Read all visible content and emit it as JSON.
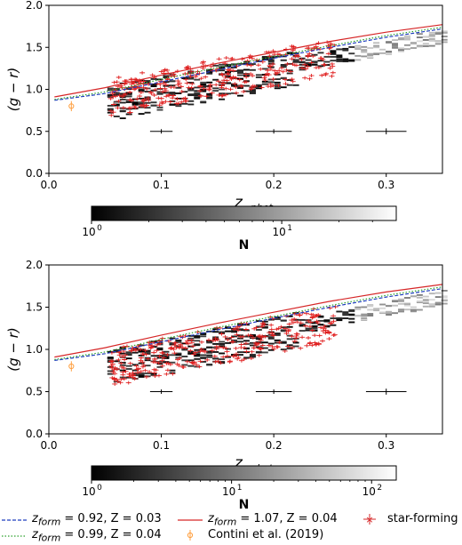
{
  "chart_data": [
    {
      "type": "heatmap",
      "panel": "top",
      "xlabel": "z_phot",
      "ylabel": "(g − r)",
      "xlim": [
        0.0,
        0.35
      ],
      "ylim": [
        0.0,
        2.0
      ],
      "xticks": [
        "0.0",
        "0.1",
        "0.2",
        "0.3"
      ],
      "yticks": [
        "0.0",
        "0.5",
        "1.0",
        "1.5",
        "2.0"
      ],
      "grid": false,
      "colorbar": {
        "label": "N",
        "scale": "log",
        "range": [
          1,
          40
        ],
        "ticks": [
          "10^0",
          "10^1"
        ]
      },
      "models": [
        {
          "name": "z_form = 0.92, Z = 0.03",
          "color": "#1f3fbf",
          "style": "dashed",
          "x": [
            0.005,
            0.05,
            0.1,
            0.15,
            0.2,
            0.25,
            0.3,
            0.35
          ],
          "y": [
            0.87,
            0.95,
            1.09,
            1.23,
            1.37,
            1.5,
            1.62,
            1.72
          ]
        },
        {
          "name": "z_form = 0.99, Z = 0.04",
          "color": "#2ca02c",
          "style": "dotted",
          "x": [
            0.005,
            0.05,
            0.1,
            0.15,
            0.2,
            0.25,
            0.3,
            0.35
          ],
          "y": [
            0.88,
            0.97,
            1.12,
            1.26,
            1.39,
            1.52,
            1.64,
            1.74
          ]
        },
        {
          "name": "z_form = 1.07, Z = 0.04",
          "color": "#d62728",
          "style": "solid",
          "x": [
            0.005,
            0.05,
            0.1,
            0.15,
            0.2,
            0.25,
            0.3,
            0.35
          ],
          "y": [
            0.91,
            1.02,
            1.17,
            1.31,
            1.44,
            1.57,
            1.68,
            1.77
          ]
        }
      ],
      "contini_2019": {
        "x": [
          0.02
        ],
        "y": [
          0.8
        ],
        "yerr": [
          0.06
        ],
        "color": "#ff9f3f"
      },
      "errorbars": [
        {
          "x": 0.1,
          "y": 0.5,
          "xerr": 0.01,
          "yerr": 0.01
        },
        {
          "x": 0.2,
          "y": 0.5,
          "xerr": 0.016,
          "yerr": 0.01
        },
        {
          "x": 0.3,
          "y": 0.5,
          "xerr": 0.018,
          "yerr": 0.02
        }
      ]
    },
    {
      "type": "heatmap",
      "panel": "bottom",
      "xlabel": "z_phot",
      "ylabel": "(g − r)",
      "xlim": [
        0.0,
        0.35
      ],
      "ylim": [
        0.0,
        2.0
      ],
      "xticks": [
        "0.0",
        "0.1",
        "0.2",
        "0.3"
      ],
      "yticks": [
        "0.0",
        "0.5",
        "1.0",
        "1.5",
        "2.0"
      ],
      "grid": false,
      "colorbar": {
        "label": "N",
        "scale": "log",
        "range": [
          1,
          150
        ],
        "ticks": [
          "10^0",
          "10^1",
          "10^2"
        ]
      },
      "models": [
        {
          "name": "z_form = 0.92, Z = 0.03",
          "color": "#1f3fbf",
          "style": "dashed",
          "x": [
            0.005,
            0.05,
            0.1,
            0.15,
            0.2,
            0.25,
            0.3,
            0.35
          ],
          "y": [
            0.87,
            0.95,
            1.09,
            1.23,
            1.37,
            1.5,
            1.62,
            1.72
          ]
        },
        {
          "name": "z_form = 0.99, Z = 0.04",
          "color": "#2ca02c",
          "style": "dotted",
          "x": [
            0.005,
            0.05,
            0.1,
            0.15,
            0.2,
            0.25,
            0.3,
            0.35
          ],
          "y": [
            0.88,
            0.97,
            1.12,
            1.26,
            1.39,
            1.52,
            1.64,
            1.74
          ]
        },
        {
          "name": "z_form = 1.07, Z = 0.04",
          "color": "#d62728",
          "style": "solid",
          "x": [
            0.005,
            0.05,
            0.1,
            0.15,
            0.2,
            0.25,
            0.3,
            0.35
          ],
          "y": [
            0.91,
            1.02,
            1.17,
            1.31,
            1.44,
            1.57,
            1.68,
            1.77
          ]
        }
      ],
      "contini_2019": {
        "x": [
          0.02
        ],
        "y": [
          0.8
        ],
        "yerr": [
          0.06
        ],
        "color": "#ff9f3f"
      },
      "errorbars": [
        {
          "x": 0.1,
          "y": 0.5,
          "xerr": 0.01,
          "yerr": 0.01
        },
        {
          "x": 0.2,
          "y": 0.5,
          "xerr": 0.016,
          "yerr": 0.01
        },
        {
          "x": 0.3,
          "y": 0.5,
          "xerr": 0.018,
          "yerr": 0.02
        }
      ]
    }
  ],
  "legend": [
    {
      "key": "m1",
      "label_main": "z",
      "label_sub": "form",
      "label_rest": " = 0.92, Z = 0.03",
      "color": "#1f3fbf",
      "style": "dashed"
    },
    {
      "key": "m3",
      "label_main": "z",
      "label_sub": "form",
      "label_rest": " = 1.07, Z = 0.04",
      "color": "#d62728",
      "style": "solid"
    },
    {
      "key": "sf",
      "label_text": "star-forming",
      "color": "#d62728",
      "style": "marker"
    },
    {
      "key": "m2",
      "label_main": "z",
      "label_sub": "form",
      "label_rest": " = 0.99, Z = 0.04",
      "color": "#2ca02c",
      "style": "dotted"
    },
    {
      "key": "contini",
      "label_text": "Contini et al. (2019)",
      "color": "#ff9f3f",
      "style": "errmarker"
    }
  ],
  "colorbar_label": "N",
  "axis_xlabel": "z",
  "axis_xlabel_sub": "phot",
  "axis_ylabel": "(g − r)"
}
